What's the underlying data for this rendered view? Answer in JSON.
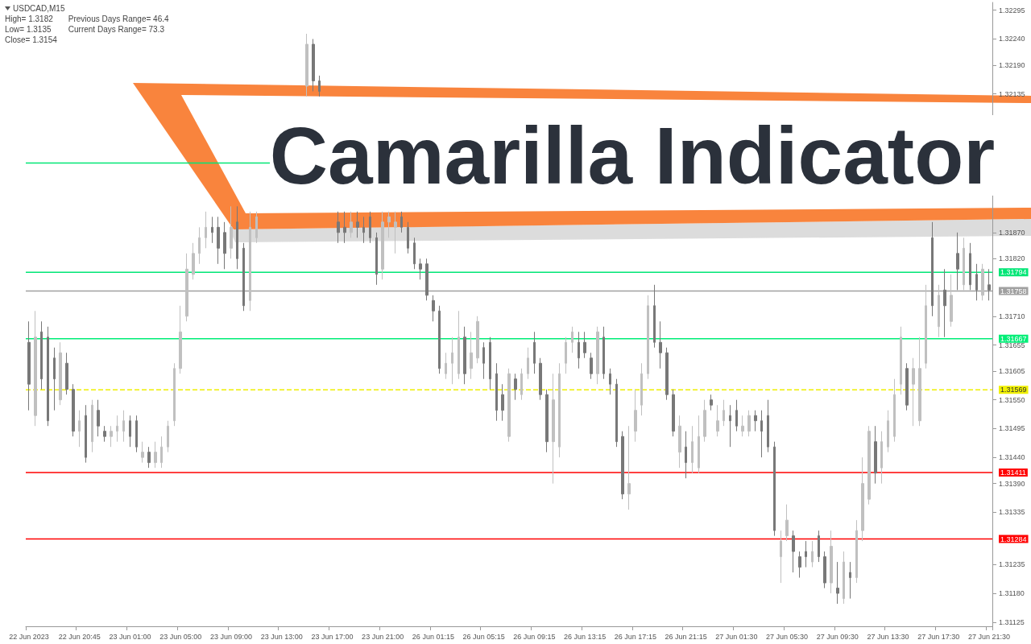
{
  "chart_data": {
    "type": "candlestick",
    "title": "Camarilla Indicator",
    "subtitle": "USDCAD,M15",
    "annotations": [
      "High= 1.3182",
      "Previous Days Range= 46.4",
      "Low= 1.3135",
      "Current Days Range= 73.3",
      "Close= 1.3154"
    ],
    "categories": [
      "22 Jun 2023",
      null,
      null,
      null,
      null,
      null,
      null,
      null,
      "22 Jun 20:45",
      null,
      null,
      null,
      null,
      null,
      null,
      null,
      "23 Jun 01:00",
      null,
      null,
      null,
      null,
      null,
      null,
      null,
      "23 Jun 05:00",
      null,
      null,
      null,
      null,
      null,
      null,
      null,
      "23 Jun 09:00",
      null,
      null,
      null,
      null,
      null,
      null,
      null,
      "23 Jun 13:00",
      null,
      null,
      null,
      null,
      null,
      null,
      null,
      "23 Jun 17:00",
      null,
      null,
      null,
      null,
      null,
      null,
      null,
      "23 Jun 21:00",
      null,
      null,
      null,
      null,
      null,
      null,
      null,
      "26 Jun 01:15",
      null,
      null,
      null,
      null,
      null,
      null,
      null,
      "26 Jun 05:15",
      null,
      null,
      null,
      null,
      null,
      null,
      null,
      "26 Jun 09:15",
      null,
      null,
      null,
      null,
      null,
      null,
      null,
      "26 Jun 13:15",
      null,
      null,
      null,
      null,
      null,
      null,
      null,
      "26 Jun 17:15",
      null,
      null,
      null,
      null,
      null,
      null,
      null,
      "26 Jun 21:15",
      null,
      null,
      null,
      null,
      null,
      null,
      null,
      "27 Jun 01:30",
      null,
      null,
      null,
      null,
      null,
      null,
      null,
      "27 Jun 05:30",
      null,
      null,
      null,
      null,
      null,
      null,
      null,
      "27 Jun 09:30",
      null,
      null,
      null,
      null,
      null,
      null,
      null,
      "27 Jun 13:30",
      null,
      null,
      null,
      null,
      null,
      null,
      null,
      "27 Jun 17:30",
      null,
      null,
      null,
      null,
      null,
      null,
      null,
      "27 Jun 21:30"
    ],
    "ohlc": [
      [
        1.3166,
        1.317,
        1.3153,
        1.3158
      ],
      [
        1.3152,
        1.3172,
        1.315,
        1.3167
      ],
      [
        1.3168,
        1.317,
        1.3157,
        1.3159
      ],
      [
        1.3167,
        1.3169,
        1.315,
        1.3151
      ],
      [
        1.3163,
        1.3165,
        1.3153,
        1.3159
      ],
      [
        1.3155,
        1.3166,
        1.3154,
        1.3164
      ],
      [
        1.3162,
        1.3164,
        1.3156,
        1.3157
      ],
      [
        1.3157,
        1.3158,
        1.3148,
        1.3149
      ],
      [
        1.3149,
        1.3153,
        1.3146,
        1.3151
      ],
      [
        1.3152,
        1.3154,
        1.3143,
        1.3144
      ],
      [
        1.3147,
        1.3155,
        1.3145,
        1.3154
      ],
      [
        1.3153,
        1.3155,
        1.3148,
        1.315
      ],
      [
        1.3149,
        1.315,
        1.3147,
        1.3148
      ],
      [
        1.3148,
        1.315,
        1.3146,
        1.3149
      ],
      [
        1.3149,
        1.3152,
        1.3147,
        1.315
      ],
      [
        1.3149,
        1.3153,
        1.3147,
        1.3151
      ],
      [
        1.3151,
        1.3152,
        1.3146,
        1.3148
      ],
      [
        1.3151,
        1.3152,
        1.3145,
        1.3146
      ],
      [
        1.3144,
        1.3147,
        1.3143,
        1.3145
      ],
      [
        1.3145,
        1.3146,
        1.3142,
        1.3143
      ],
      [
        1.3143,
        1.3147,
        1.3142,
        1.3145
      ],
      [
        1.3143,
        1.3148,
        1.3142,
        1.3146
      ],
      [
        1.3146,
        1.3151,
        1.3145,
        1.315
      ],
      [
        1.3151,
        1.3162,
        1.315,
        1.3161
      ],
      [
        1.3161,
        1.3173,
        1.316,
        1.3168
      ],
      [
        1.3171,
        1.3183,
        1.317,
        1.318
      ],
      [
        1.3179,
        1.3185,
        1.3178,
        1.3183
      ],
      [
        1.3183,
        1.3188,
        1.3181,
        1.3186
      ],
      [
        1.3186,
        1.3191,
        1.3184,
        1.3188
      ],
      [
        1.3188,
        1.319,
        1.3185,
        1.3187
      ],
      [
        1.3188,
        1.319,
        1.3181,
        1.3184
      ],
      [
        1.3187,
        1.3189,
        1.318,
        1.3183
      ],
      [
        1.3184,
        1.3192,
        1.3182,
        1.3188
      ],
      [
        1.3189,
        1.3192,
        1.318,
        1.3182
      ],
      [
        1.3184,
        1.3185,
        1.3172,
        1.3173
      ],
      [
        1.3174,
        1.3191,
        1.3172,
        1.3188
      ],
      [
        1.3186,
        1.3191,
        1.3185,
        1.319
      ],
      null,
      null,
      null,
      null,
      null,
      null,
      null,
      [
        1.3215,
        1.3225,
        1.3213,
        1.3223
      ],
      [
        1.3223,
        1.3224,
        1.3214,
        1.3216
      ],
      [
        1.3216,
        1.3217,
        1.3213,
        1.3214
      ],
      null,
      null,
      [
        1.3189,
        1.3191,
        1.3185,
        1.3187
      ],
      [
        1.3188,
        1.3191,
        1.3185,
        1.3187
      ],
      [
        1.3187,
        1.3191,
        1.3186,
        1.3189
      ],
      [
        1.3189,
        1.3191,
        1.3186,
        1.3188
      ],
      [
        1.3188,
        1.319,
        1.3185,
        1.3187
      ],
      [
        1.319,
        1.3191,
        1.3185,
        1.3186
      ],
      [
        1.3186,
        1.3187,
        1.3177,
        1.3179
      ],
      [
        1.318,
        1.3191,
        1.3178,
        1.3189
      ],
      [
        1.3189,
        1.3191,
        1.3186,
        1.319
      ],
      [
        1.3188,
        1.3191,
        1.3183,
        1.3189
      ],
      [
        1.319,
        1.3191,
        1.3187,
        1.3188
      ],
      [
        1.3188,
        1.3189,
        1.3183,
        1.3184
      ],
      [
        1.3185,
        1.3186,
        1.318,
        1.3181
      ],
      [
        1.3181,
        1.3182,
        1.3178,
        1.318
      ],
      [
        1.3181,
        1.3182,
        1.3174,
        1.3175
      ],
      [
        1.3174,
        1.3175,
        1.317,
        1.3172
      ],
      [
        1.3172,
        1.3173,
        1.316,
        1.3161
      ],
      [
        1.316,
        1.3164,
        1.3159,
        1.3162
      ],
      [
        1.3162,
        1.3167,
        1.3158,
        1.3164
      ],
      [
        1.316,
        1.3172,
        1.3159,
        1.3167
      ],
      [
        1.3167,
        1.3169,
        1.3158,
        1.316
      ],
      [
        1.3161,
        1.3168,
        1.3159,
        1.3164
      ],
      [
        1.3163,
        1.3171,
        1.3162,
        1.317
      ],
      [
        1.3165,
        1.3166,
        1.3159,
        1.3162
      ],
      [
        1.3166,
        1.3167,
        1.3157,
        1.3159
      ],
      [
        1.316,
        1.3162,
        1.3151,
        1.3153
      ],
      [
        1.3156,
        1.3158,
        1.3151,
        1.3153
      ],
      [
        1.3148,
        1.3161,
        1.3147,
        1.316
      ],
      [
        1.3159,
        1.316,
        1.3155,
        1.3157
      ],
      [
        1.3156,
        1.3161,
        1.3155,
        1.316
      ],
      [
        1.316,
        1.3165,
        1.3159,
        1.3163
      ],
      [
        1.3166,
        1.3168,
        1.316,
        1.3162
      ],
      [
        1.3162,
        1.3163,
        1.3155,
        1.3156
      ],
      [
        1.3156,
        1.3157,
        1.3145,
        1.3147
      ],
      [
        1.3147,
        1.316,
        1.3139,
        1.3155
      ],
      [
        1.3146,
        1.3162,
        1.3144,
        1.316
      ],
      [
        1.3162,
        1.3167,
        1.316,
        1.3166
      ],
      [
        1.3166,
        1.3169,
        1.3164,
        1.3168
      ],
      [
        1.3166,
        1.3168,
        1.3161,
        1.3163
      ],
      [
        1.3166,
        1.3168,
        1.3163,
        1.3164
      ],
      [
        1.3163,
        1.3164,
        1.3159,
        1.316
      ],
      [
        1.316,
        1.3169,
        1.3158,
        1.3168
      ],
      [
        1.3167,
        1.3169,
        1.3159,
        1.316
      ],
      [
        1.316,
        1.3161,
        1.3156,
        1.3158
      ],
      [
        1.3158,
        1.3159,
        1.3146,
        1.3147
      ],
      [
        1.3148,
        1.3149,
        1.3136,
        1.3137
      ],
      [
        1.3137,
        1.315,
        1.3134,
        1.3139
      ],
      [
        1.3149,
        1.3157,
        1.3147,
        1.3153
      ],
      [
        1.3154,
        1.3162,
        1.3152,
        1.316
      ],
      [
        1.316,
        1.3175,
        1.3159,
        1.3173
      ],
      [
        1.3173,
        1.3177,
        1.3165,
        1.3166
      ],
      [
        1.3166,
        1.317,
        1.3161,
        1.3164
      ],
      [
        1.3164,
        1.3165,
        1.3155,
        1.3156
      ],
      [
        1.3156,
        1.3157,
        1.3148,
        1.3149
      ],
      [
        1.3145,
        1.3152,
        1.3142,
        1.315
      ],
      [
        1.3146,
        1.3149,
        1.314,
        1.3143
      ],
      [
        1.3143,
        1.315,
        1.3141,
        1.3147
      ],
      [
        1.3142,
        1.3152,
        1.3141,
        1.3148
      ],
      [
        1.3148,
        1.3155,
        1.3147,
        1.3153
      ],
      [
        1.3155,
        1.3156,
        1.3153,
        1.3154
      ],
      [
        1.3149,
        1.3154,
        1.3148,
        1.3151
      ],
      [
        1.3151,
        1.3155,
        1.315,
        1.3153
      ],
      [
        1.3152,
        1.3154,
        1.3146,
        1.3151
      ],
      [
        1.3153,
        1.3155,
        1.3149,
        1.315
      ],
      [
        1.3149,
        1.3152,
        1.3148,
        1.315
      ],
      [
        1.3149,
        1.3153,
        1.3148,
        1.3152
      ],
      [
        1.3152,
        1.3153,
        1.3149,
        1.3151
      ],
      [
        1.3151,
        1.3153,
        1.3144,
        1.3149
      ],
      [
        1.3152,
        1.3155,
        1.3145,
        1.3146
      ],
      [
        1.3146,
        1.3147,
        1.3129,
        1.313
      ],
      [
        1.3125,
        1.313,
        1.312,
        1.3128
      ],
      [
        1.3129,
        1.3135,
        1.3128,
        1.3132
      ],
      [
        1.3129,
        1.313,
        1.3122,
        1.3126
      ],
      [
        1.3125,
        1.3126,
        1.3121,
        1.3123
      ],
      [
        1.3126,
        1.3128,
        1.3123,
        1.3125
      ],
      [
        1.3124,
        1.3128,
        1.3123,
        1.3126
      ],
      [
        1.3129,
        1.313,
        1.3124,
        1.3125
      ],
      [
        1.3125,
        1.3126,
        1.3119,
        1.312
      ],
      [
        1.312,
        1.313,
        1.3118,
        1.3127
      ],
      [
        1.3119,
        1.3124,
        1.3116,
        1.3118
      ],
      [
        1.3117,
        1.3126,
        1.3116,
        1.3124
      ],
      [
        1.3122,
        1.3124,
        1.3117,
        1.3121
      ],
      [
        1.3121,
        1.3132,
        1.312,
        1.313
      ],
      [
        1.313,
        1.3144,
        1.3128,
        1.3139
      ],
      [
        1.3136,
        1.315,
        1.3135,
        1.3149
      ],
      [
        1.3147,
        1.315,
        1.3139,
        1.3141
      ],
      [
        1.3142,
        1.3149,
        1.3139,
        1.3147
      ],
      [
        1.3146,
        1.3153,
        1.3145,
        1.3151
      ],
      [
        1.3148,
        1.3159,
        1.3147,
        1.3156
      ],
      [
        1.3158,
        1.3169,
        1.3156,
        1.3167
      ],
      [
        1.3161,
        1.3162,
        1.3153,
        1.3154
      ],
      [
        1.3158,
        1.3163,
        1.315,
        1.3161
      ],
      [
        1.3151,
        1.3167,
        1.315,
        1.3161
      ],
      [
        1.3162,
        1.3177,
        1.3161,
        1.3173
      ],
      [
        1.3186,
        1.3189,
        1.3171,
        1.3173
      ],
      [
        1.3169,
        1.3177,
        1.3167,
        1.3175
      ],
      [
        1.3176,
        1.318,
        1.3167,
        1.3173
      ],
      [
        1.317,
        1.3179,
        1.3169,
        1.3175
      ],
      [
        1.3183,
        1.3187,
        1.3176,
        1.318
      ],
      [
        1.3177,
        1.3186,
        1.3176,
        1.3184
      ],
      [
        1.3183,
        1.3185,
        1.3176,
        1.3177
      ],
      [
        1.3179,
        1.3181,
        1.3174,
        1.3176
      ],
      [
        1.3175,
        1.3181,
        1.3174,
        1.318
      ],
      [
        1.3177,
        1.318,
        1.3174,
        1.3176
      ]
    ],
    "colors": [
      "#787878",
      "#c0c0c0",
      "#787878",
      "#787878",
      "#787878",
      "#c0c0c0",
      "#787878",
      "#787878",
      "#c0c0c0",
      "#787878",
      "#c0c0c0",
      "#787878",
      "#787878",
      "#c0c0c0",
      "#c0c0c0",
      "#c0c0c0",
      "#787878",
      "#787878",
      "#c0c0c0",
      "#787878",
      "#c0c0c0",
      "#c0c0c0",
      "#c0c0c0",
      "#c0c0c0",
      "#c0c0c0",
      "#c0c0c0",
      "#c0c0c0",
      "#c0c0c0",
      "#c0c0c0",
      "#787878",
      "#787878",
      "#787878",
      "#c0c0c0",
      "#787878",
      "#787878",
      "#c0c0c0",
      "#c0c0c0",
      null,
      null,
      null,
      null,
      null,
      null,
      null,
      "#c0c0c0",
      "#787878",
      "#787878",
      null,
      null,
      "#787878",
      "#787878",
      "#c0c0c0",
      "#787878",
      "#787878",
      "#787878",
      "#787878",
      "#c0c0c0",
      "#c0c0c0",
      "#c0c0c0",
      "#787878",
      "#787878",
      "#787878",
      "#787878",
      "#787878",
      "#787878",
      "#787878",
      "#c0c0c0",
      "#c0c0c0",
      "#c0c0c0",
      "#787878",
      "#c0c0c0",
      "#c0c0c0",
      "#787878",
      "#787878",
      "#787878",
      "#787878",
      "#c0c0c0",
      "#787878",
      "#c0c0c0",
      "#c0c0c0",
      "#787878",
      "#787878",
      "#787878",
      "#c0c0c0",
      "#c0c0c0",
      "#c0c0c0",
      "#c0c0c0",
      "#787878",
      "#787878",
      "#787878",
      "#c0c0c0",
      "#787878",
      "#787878",
      "#787878",
      "#787878",
      "#c0c0c0",
      "#c0c0c0",
      "#c0c0c0",
      "#c0c0c0",
      "#787878",
      "#787878",
      "#787878",
      "#787878",
      "#c0c0c0",
      "#787878",
      "#c0c0c0",
      "#c0c0c0",
      "#c0c0c0",
      "#787878",
      "#c0c0c0",
      "#c0c0c0",
      "#787878",
      "#787878",
      "#c0c0c0",
      "#c0c0c0",
      "#787878",
      "#787878",
      "#787878",
      "#787878",
      "#c0c0c0",
      "#c0c0c0",
      "#787878",
      "#787878",
      "#787878",
      "#c0c0c0",
      "#787878",
      "#787878",
      "#c0c0c0",
      "#787878",
      "#c0c0c0",
      "#787878",
      "#c0c0c0",
      "#c0c0c0",
      "#c0c0c0",
      "#787878",
      "#c0c0c0",
      "#c0c0c0",
      "#c0c0c0",
      "#c0c0c0",
      "#787878",
      "#c0c0c0",
      "#c0c0c0",
      "#c0c0c0",
      "#787878",
      "#c0c0c0",
      "#787878",
      "#c0c0c0",
      "#787878",
      "#c0c0c0",
      "#787878",
      "#787878",
      "#c0c0c0",
      "#787878"
    ],
    "ylim": [
      1.31117,
      1.3231
    ],
    "yticks": [
      1.32295,
      {
        "value": 1.3224,
        "label": "1.32240"
      },
      {
        "value": 1.3219,
        "label": "1.32190"
      },
      1.32135,
      {
        "value": 1.3187,
        "label": "1.31870"
      },
      {
        "value": 1.3182,
        "label": "1.31820"
      },
      {
        "value": 1.3171,
        "label": "1.31710"
      },
      1.31655,
      1.31605,
      {
        "value": 1.3155,
        "label": "1.31550"
      },
      1.31495,
      {
        "value": 1.3144,
        "label": "1.31440"
      },
      {
        "value": 1.3139,
        "label": "1.31390"
      },
      1.31335,
      1.31235,
      {
        "value": 1.3118,
        "label": "1.31180"
      },
      1.31125
    ],
    "ref_lines": [
      {
        "axis": "y",
        "value": 1.32003,
        "color": "#00e676",
        "line_style": "solid"
      },
      {
        "axis": "y",
        "value": 1.31794,
        "label": "1.31794",
        "color": "#00e676",
        "line_style": "solid"
      },
      {
        "axis": "y",
        "value": 1.31758,
        "label": "1.31758",
        "color": "#a0a0a0",
        "line_style": "solid"
      },
      {
        "axis": "y",
        "value": 1.31667,
        "label": "1.31667",
        "color": "#00ee77",
        "line_style": "solid"
      },
      {
        "axis": "y",
        "value": 1.31569,
        "label": "1.31569",
        "color": "#f0f000",
        "line_style": "dashed"
      },
      {
        "axis": "y",
        "value": 1.31411,
        "label": "1.31411",
        "color": "#ff0000",
        "line_style": "solid"
      },
      {
        "axis": "y",
        "value": 1.31284,
        "label": "1.31284",
        "color": "#ff0000",
        "line_style": "solid"
      }
    ]
  }
}
